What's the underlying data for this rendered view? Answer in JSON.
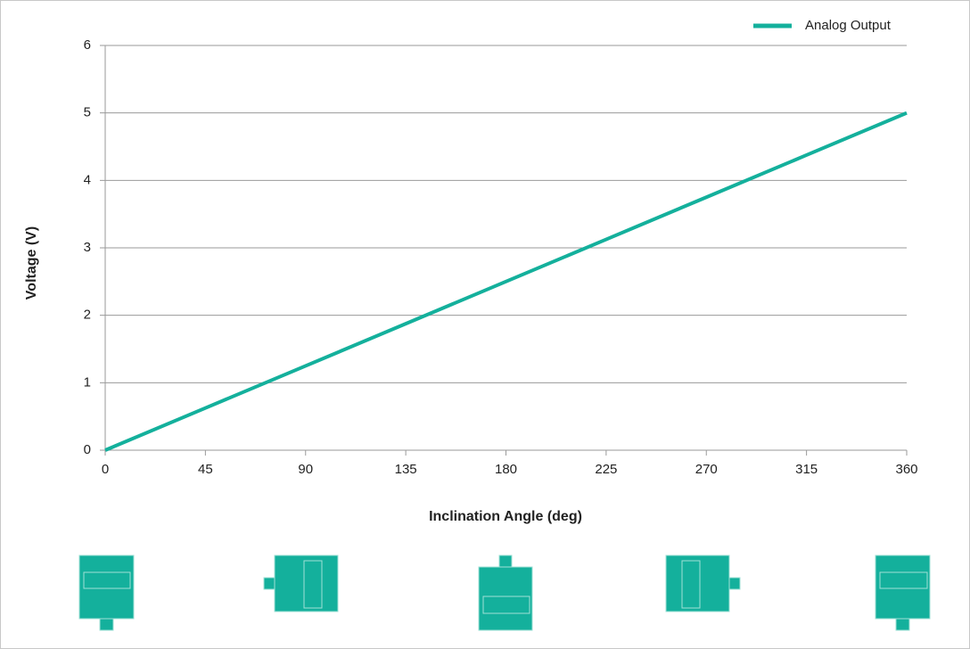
{
  "chart_data": {
    "type": "line",
    "x": [
      0,
      45,
      90,
      135,
      180,
      225,
      270,
      315,
      360
    ],
    "series": [
      {
        "name": "Analog Output",
        "color": "#14b09c",
        "values": [
          0,
          0.625,
          1.25,
          1.875,
          2.5,
          3.125,
          3.75,
          4.375,
          5
        ]
      }
    ],
    "xlim": [
      0,
      360
    ],
    "xticks": [
      0,
      45,
      90,
      135,
      180,
      225,
      270,
      315,
      360
    ],
    "ylim": [
      0,
      6
    ],
    "yticks": [
      0,
      1,
      2,
      3,
      4,
      5,
      6
    ],
    "x_label": "Inclination Angle (deg)",
    "y_label": "Voltage (V)",
    "grid": true,
    "legend": "top-right"
  }
}
